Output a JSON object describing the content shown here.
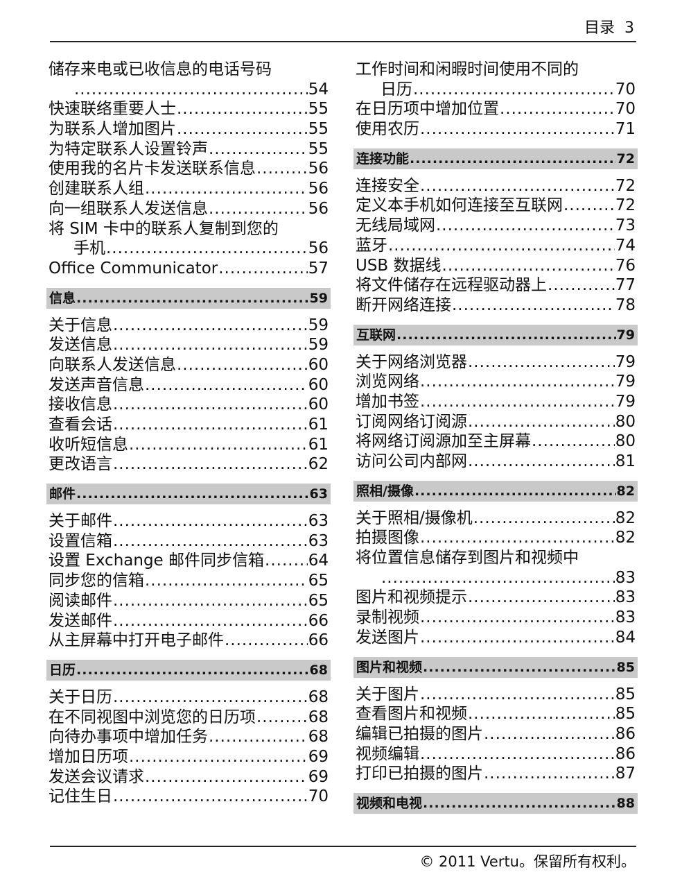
{
  "header": {
    "title": "目录",
    "page": "3"
  },
  "footer": {
    "text": "© 2011 Vertu。保留所有权利。"
  },
  "left": [
    {
      "type": "item",
      "title": "储存来电或已收信息的电话号码",
      "cont": "",
      "page": "54"
    },
    {
      "type": "item",
      "title": "快速联络重要人士",
      "page": "55"
    },
    {
      "type": "item",
      "title": "为联系人增加图片",
      "page": "55"
    },
    {
      "type": "item",
      "title": "为特定联系人设置铃声",
      "page": "55"
    },
    {
      "type": "item",
      "title": "使用我的名片卡发送联系信息",
      "page": "56"
    },
    {
      "type": "item",
      "title": "创建联系人组",
      "page": "56"
    },
    {
      "type": "item",
      "title": "向一组联系人发送信息",
      "page": "56"
    },
    {
      "type": "item",
      "title": "将 SIM 卡中的联系人复制到您的",
      "cont": "手机",
      "page": "56"
    },
    {
      "type": "item",
      "title": "Office Communicator",
      "page": "57"
    },
    {
      "type": "section",
      "title": "信息",
      "page": "59"
    },
    {
      "type": "item",
      "title": "关于信息",
      "page": "59"
    },
    {
      "type": "item",
      "title": "发送信息",
      "page": "59"
    },
    {
      "type": "item",
      "title": "向联系人发送信息",
      "page": "60"
    },
    {
      "type": "item",
      "title": "发送声音信息",
      "page": "60"
    },
    {
      "type": "item",
      "title": "接收信息",
      "page": "60"
    },
    {
      "type": "item",
      "title": "查看会话",
      "page": "61"
    },
    {
      "type": "item",
      "title": "收听短信息",
      "page": "61"
    },
    {
      "type": "item",
      "title": "更改语言",
      "page": "62"
    },
    {
      "type": "section",
      "title": "邮件",
      "page": "63"
    },
    {
      "type": "item",
      "title": "关于邮件",
      "page": "63"
    },
    {
      "type": "item",
      "title": "设置信箱",
      "page": "63"
    },
    {
      "type": "item",
      "title": "设置 Exchange 邮件同步信箱",
      "page": "64"
    },
    {
      "type": "item",
      "title": "同步您的信箱",
      "page": "65"
    },
    {
      "type": "item",
      "title": "阅读邮件",
      "page": "65"
    },
    {
      "type": "item",
      "title": "发送邮件",
      "page": "66"
    },
    {
      "type": "item",
      "title": "从主屏幕中打开电子邮件",
      "page": "66"
    },
    {
      "type": "section",
      "title": "日历",
      "page": "68"
    },
    {
      "type": "item",
      "title": "关于日历",
      "page": "68"
    },
    {
      "type": "item",
      "title": "在不同视图中浏览您的日历项",
      "page": "68"
    },
    {
      "type": "item",
      "title": "向待办事项中增加任务",
      "page": "68"
    },
    {
      "type": "item",
      "title": "增加日历项",
      "page": "69"
    },
    {
      "type": "item",
      "title": "发送会议请求",
      "page": "69"
    },
    {
      "type": "item",
      "title": "记住生日",
      "page": "70"
    }
  ],
  "right": [
    {
      "type": "item",
      "title": "工作时间和闲暇时间使用不同的",
      "cont": "日历",
      "page": "70"
    },
    {
      "type": "item",
      "title": "在日历项中增加位置",
      "page": "70"
    },
    {
      "type": "item",
      "title": "使用农历",
      "page": "71"
    },
    {
      "type": "section",
      "title": "连接功能",
      "page": "72"
    },
    {
      "type": "item",
      "title": "连接安全",
      "page": "72"
    },
    {
      "type": "item",
      "title": "定义本手机如何连接至互联网",
      "page": "72"
    },
    {
      "type": "item",
      "title": "无线局域网",
      "page": "73"
    },
    {
      "type": "item",
      "title": "蓝牙",
      "page": "74"
    },
    {
      "type": "item",
      "title": "USB 数据线",
      "page": "76"
    },
    {
      "type": "item",
      "title": "将文件储存在远程驱动器上",
      "page": "77"
    },
    {
      "type": "item",
      "title": "断开网络连接",
      "page": "78"
    },
    {
      "type": "section",
      "title": "互联网",
      "page": "79"
    },
    {
      "type": "item",
      "title": "关于网络浏览器",
      "page": "79"
    },
    {
      "type": "item",
      "title": "浏览网络",
      "page": "79"
    },
    {
      "type": "item",
      "title": "增加书签",
      "page": "79"
    },
    {
      "type": "item",
      "title": "订阅网络订阅源",
      "page": "80"
    },
    {
      "type": "item",
      "title": "将网络订阅源加至主屏幕",
      "page": "80"
    },
    {
      "type": "item",
      "title": "访问公司内部网",
      "page": "81"
    },
    {
      "type": "section",
      "title": "照相/摄像",
      "page": "82"
    },
    {
      "type": "item",
      "title": "关于照相/摄像机",
      "page": "82"
    },
    {
      "type": "item",
      "title": "拍摄图像",
      "page": "82"
    },
    {
      "type": "item",
      "title": "将位置信息储存到图片和视频中",
      "cont": "",
      "page": "83"
    },
    {
      "type": "item",
      "title": "图片和视频提示",
      "page": "83"
    },
    {
      "type": "item",
      "title": "录制视频",
      "page": "83"
    },
    {
      "type": "item",
      "title": "发送图片",
      "page": "84"
    },
    {
      "type": "section",
      "title": "图片和视频",
      "page": "85"
    },
    {
      "type": "item",
      "title": "关于图片",
      "page": "85"
    },
    {
      "type": "item",
      "title": "查看图片和视频",
      "page": "85"
    },
    {
      "type": "item",
      "title": "编辑已拍摄的图片",
      "page": "86"
    },
    {
      "type": "item",
      "title": "视频编辑",
      "page": "86"
    },
    {
      "type": "item",
      "title": "打印已拍摄的图片",
      "page": "87"
    },
    {
      "type": "section",
      "title": "视频和电视",
      "page": "88"
    }
  ]
}
